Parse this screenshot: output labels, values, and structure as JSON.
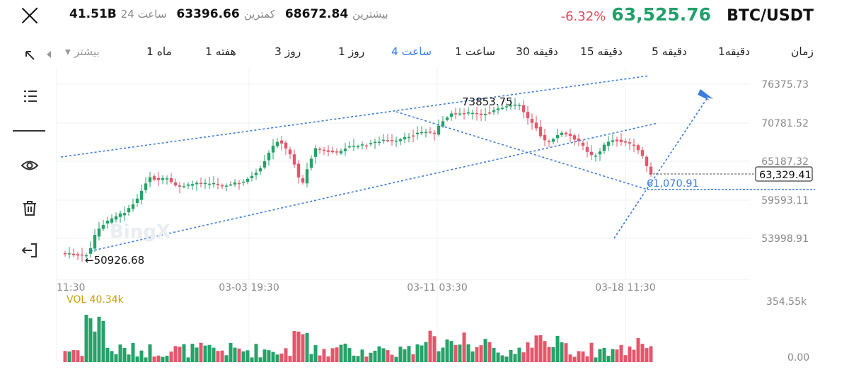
{
  "header": {
    "close_icon": "close-icon",
    "volume_value": "41.51B",
    "volume_label": "24 ساعت",
    "low_value": "63396.66",
    "low_label": "کمترین",
    "high_value": "68672.84",
    "high_label": "بیشترین",
    "change_pct": "-6.32%",
    "last_price": "63,525.76",
    "pair": "BTC/USDT"
  },
  "timeframes": {
    "more_label": "▾ بیشتر",
    "items": [
      "1 ماه",
      "1 هفته",
      "3 روز",
      "1 روز",
      "4 ساعت",
      "1 ساعت",
      "30 دقیقه",
      "15 دقیقه",
      "5 دقیقه",
      "1دقیقه",
      "زمان"
    ],
    "active": "4 ساعت"
  },
  "tools": [
    "expand-icon",
    "menu-icon",
    "eye-icon",
    "trash-icon",
    "exit-icon"
  ],
  "chart": {
    "y_ticks": [
      "76375.73",
      "70781.52",
      "65187.32",
      "59593.11",
      "53998.91"
    ],
    "x_ticks": [
      "11:30",
      "03-03 19:30",
      "03-11 03:30",
      "03-18 11:30"
    ],
    "high_marker": "73853.75",
    "low_marker": "←50926.68",
    "current_price_label": "63,329.41",
    "projection_label": "61,070.91",
    "vol_label": "VOL 40.34k",
    "vol_ticks": [
      "354.55k",
      "0.00"
    ],
    "colors": {
      "up": "#26a269",
      "down": "#e5566b",
      "drawing": "#3b7ddd"
    }
  }
}
